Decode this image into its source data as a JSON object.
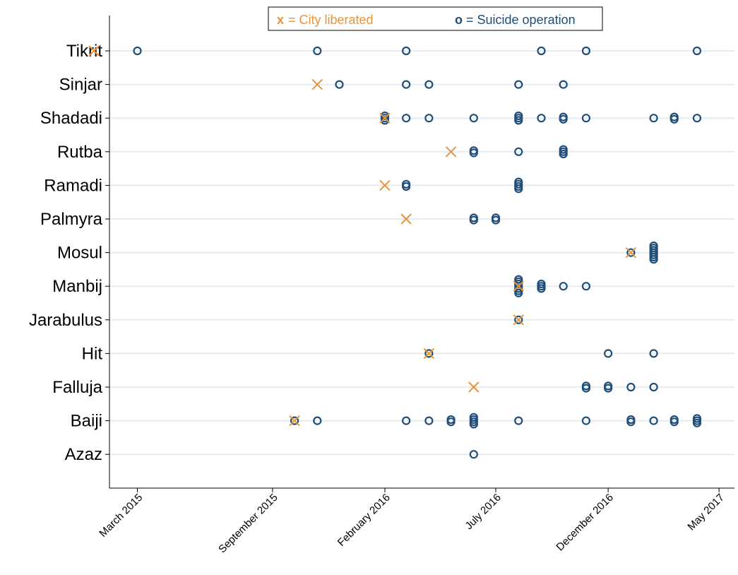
{
  "chart_data": {
    "type": "scatter",
    "categories": [
      "Tikrit",
      "Sinjar",
      "Shadadi",
      "Rutba",
      "Ramadi",
      "Palmyra",
      "Mosul",
      "Manbij",
      "Jarabulus",
      "Hit",
      "Falluja",
      "Baiji",
      "Azaz"
    ],
    "x_ticks": [
      {
        "date": "2015-03",
        "label": "March 2015"
      },
      {
        "date": "2015-09",
        "label": "September 2015"
      },
      {
        "date": "2016-02",
        "label": "February 2016"
      },
      {
        "date": "2016-07",
        "label": "July 2016"
      },
      {
        "date": "2016-12",
        "label": "December 2016"
      },
      {
        "date": "2017-05",
        "label": "May 2017"
      }
    ],
    "xlim": [
      "2015-01-22",
      "2017-05-22"
    ],
    "grid": true,
    "legend_position": "top",
    "series": [
      {
        "name": "City liberated",
        "marker": "x",
        "color": "#e8953a",
        "points": [
          {
            "category": "Tikrit",
            "date": "2015-01"
          },
          {
            "category": "Sinjar",
            "date": "2015-11"
          },
          {
            "category": "Shadadi",
            "date": "2016-02"
          },
          {
            "category": "Rutba",
            "date": "2016-05"
          },
          {
            "category": "Ramadi",
            "date": "2016-02"
          },
          {
            "category": "Palmyra",
            "date": "2016-03"
          },
          {
            "category": "Mosul",
            "date": "2017-01"
          },
          {
            "category": "Manbij",
            "date": "2016-08"
          },
          {
            "category": "Jarabulus",
            "date": "2016-08"
          },
          {
            "category": "Hit",
            "date": "2016-04"
          },
          {
            "category": "Falluja",
            "date": "2016-06"
          },
          {
            "category": "Baiji",
            "date": "2015-10"
          }
        ]
      },
      {
        "name": "Suicide operation",
        "marker": "circle",
        "color": "#1f4e79",
        "points": [
          {
            "category": "Tikrit",
            "date": "2015-03",
            "count": 1
          },
          {
            "category": "Tikrit",
            "date": "2015-11",
            "count": 1
          },
          {
            "category": "Tikrit",
            "date": "2016-03",
            "count": 1
          },
          {
            "category": "Tikrit",
            "date": "2016-09",
            "count": 1
          },
          {
            "category": "Tikrit",
            "date": "2016-11",
            "count": 1
          },
          {
            "category": "Tikrit",
            "date": "2017-04",
            "count": 1
          },
          {
            "category": "Sinjar",
            "date": "2015-12",
            "count": 1
          },
          {
            "category": "Sinjar",
            "date": "2016-03",
            "count": 1
          },
          {
            "category": "Sinjar",
            "date": "2016-04",
            "count": 1
          },
          {
            "category": "Sinjar",
            "date": "2016-08",
            "count": 1
          },
          {
            "category": "Sinjar",
            "date": "2016-10",
            "count": 1
          },
          {
            "category": "Shadadi",
            "date": "2016-02",
            "count": 3
          },
          {
            "category": "Shadadi",
            "date": "2016-03",
            "count": 1
          },
          {
            "category": "Shadadi",
            "date": "2016-04",
            "count": 1
          },
          {
            "category": "Shadadi",
            "date": "2016-06",
            "count": 1
          },
          {
            "category": "Shadadi",
            "date": "2016-08",
            "count": 3
          },
          {
            "category": "Shadadi",
            "date": "2016-09",
            "count": 1
          },
          {
            "category": "Shadadi",
            "date": "2016-10",
            "count": 2
          },
          {
            "category": "Shadadi",
            "date": "2016-11",
            "count": 1
          },
          {
            "category": "Shadadi",
            "date": "2017-02",
            "count": 1
          },
          {
            "category": "Shadadi",
            "date": "2017-03",
            "count": 2
          },
          {
            "category": "Shadadi",
            "date": "2017-04",
            "count": 1
          },
          {
            "category": "Rutba",
            "date": "2016-06",
            "count": 2
          },
          {
            "category": "Rutba",
            "date": "2016-08",
            "count": 1
          },
          {
            "category": "Rutba",
            "date": "2016-10",
            "count": 3
          },
          {
            "category": "Ramadi",
            "date": "2016-03",
            "count": 2
          },
          {
            "category": "Ramadi",
            "date": "2016-08",
            "count": 4
          },
          {
            "category": "Palmyra",
            "date": "2016-06",
            "count": 2
          },
          {
            "category": "Palmyra",
            "date": "2016-07",
            "count": 2
          },
          {
            "category": "Mosul",
            "date": "2017-01",
            "count": 1
          },
          {
            "category": "Mosul",
            "date": "2017-02",
            "count": 7
          },
          {
            "category": "Manbij",
            "date": "2016-08",
            "count": 7
          },
          {
            "category": "Manbij",
            "date": "2016-09",
            "count": 3
          },
          {
            "category": "Manbij",
            "date": "2016-10",
            "count": 1
          },
          {
            "category": "Manbij",
            "date": "2016-11",
            "count": 1
          },
          {
            "category": "Jarabulus",
            "date": "2016-08",
            "count": 1
          },
          {
            "category": "Hit",
            "date": "2016-04",
            "count": 1
          },
          {
            "category": "Hit",
            "date": "2016-12",
            "count": 1
          },
          {
            "category": "Hit",
            "date": "2017-02",
            "count": 1
          },
          {
            "category": "Falluja",
            "date": "2016-11",
            "count": 2
          },
          {
            "category": "Falluja",
            "date": "2016-12",
            "count": 2
          },
          {
            "category": "Falluja",
            "date": "2017-01",
            "count": 1
          },
          {
            "category": "Falluja",
            "date": "2017-02",
            "count": 1
          },
          {
            "category": "Baiji",
            "date": "2015-10",
            "count": 1
          },
          {
            "category": "Baiji",
            "date": "2015-11",
            "count": 1
          },
          {
            "category": "Baiji",
            "date": "2016-03",
            "count": 1
          },
          {
            "category": "Baiji",
            "date": "2016-04",
            "count": 1
          },
          {
            "category": "Baiji",
            "date": "2016-05",
            "count": 2
          },
          {
            "category": "Baiji",
            "date": "2016-06",
            "count": 4
          },
          {
            "category": "Baiji",
            "date": "2016-08",
            "count": 1
          },
          {
            "category": "Baiji",
            "date": "2016-11",
            "count": 1
          },
          {
            "category": "Baiji",
            "date": "2017-01",
            "count": 2
          },
          {
            "category": "Baiji",
            "date": "2017-02",
            "count": 1
          },
          {
            "category": "Baiji",
            "date": "2017-03",
            "count": 2
          },
          {
            "category": "Baiji",
            "date": "2017-04",
            "count": 3
          },
          {
            "category": "Azaz",
            "date": "2016-06",
            "count": 1
          }
        ]
      }
    ]
  },
  "legend": {
    "items": [
      {
        "symbol": "x",
        "text": "= City liberated",
        "color": "#e8953a"
      },
      {
        "symbol": "o",
        "text": "= Suicide operation",
        "color": "#1f4e79"
      }
    ]
  }
}
